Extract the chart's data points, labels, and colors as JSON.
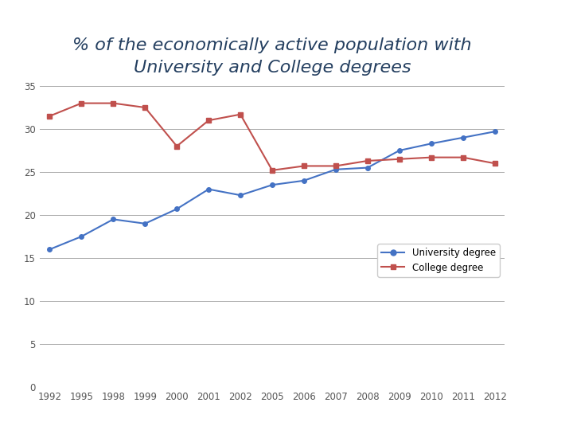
{
  "title_line1": "% of the economically active population with",
  "title_line2": "University and College degrees",
  "years": [
    "1992",
    "1995",
    "1998",
    "1999",
    "2000",
    "2001",
    "2002",
    "2005",
    "2006",
    "2007",
    "2008",
    "2009",
    "2010",
    "2011",
    "2012"
  ],
  "university": [
    16.0,
    17.5,
    19.5,
    19.0,
    20.7,
    23.0,
    22.3,
    23.5,
    24.0,
    25.3,
    25.5,
    27.5,
    28.3,
    29.0,
    29.7
  ],
  "college": [
    31.5,
    33.0,
    33.0,
    32.5,
    28.0,
    31.0,
    31.7,
    25.2,
    25.7,
    25.7,
    26.3,
    26.5,
    26.7,
    26.7,
    26.0
  ],
  "uni_color": "#4472C4",
  "col_color": "#C0504D",
  "ylim": [
    0,
    35
  ],
  "yticks": [
    0,
    5,
    10,
    15,
    20,
    25,
    30,
    35
  ],
  "uni_label": "University degree",
  "col_label": "College degree",
  "bg_color": "#FFFFFF",
  "grid_color": "#AAAAAA",
  "title_color": "#243F60",
  "title_fontsize": 16,
  "tick_fontsize": 8.5,
  "legend_fontsize": 8.5
}
